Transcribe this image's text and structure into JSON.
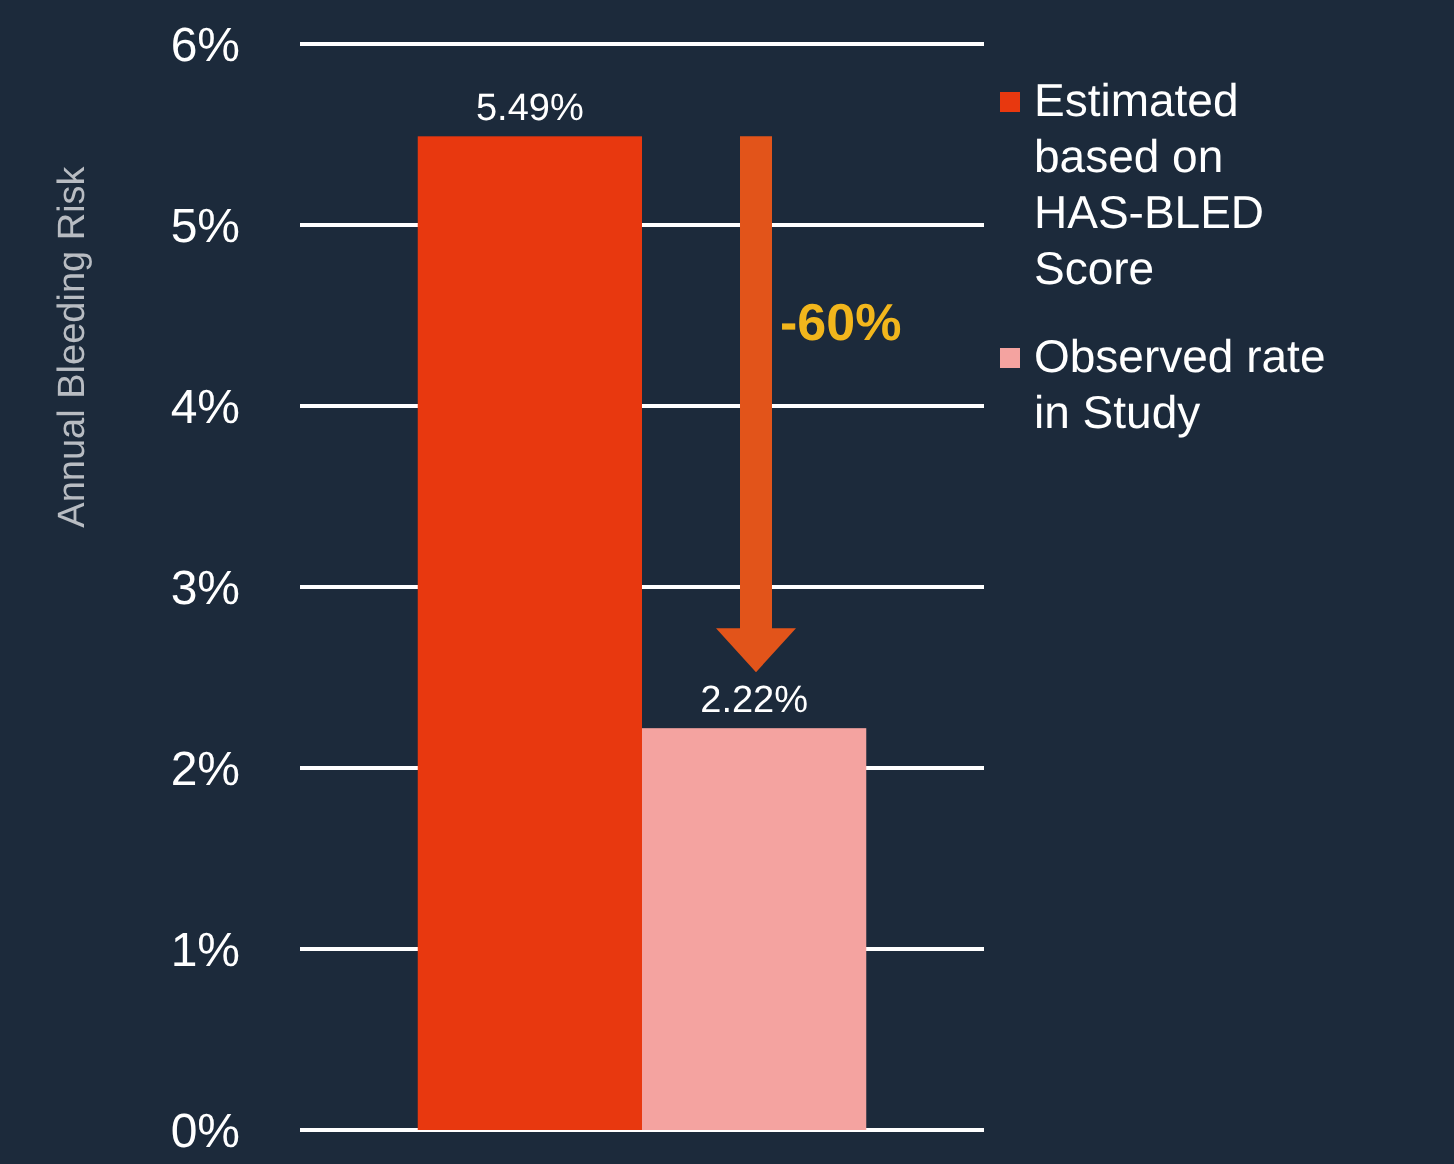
{
  "chart_data": {
    "type": "bar",
    "ylabel": "Annual Bleeding Risk",
    "categories": [
      null
    ],
    "series": [
      {
        "name": "Estimated based on HAS-BLED Score",
        "color": "#e8380f",
        "values": [
          5.49
        ]
      },
      {
        "name": "Observed rate in Study",
        "color": "#f4a3a0",
        "values": [
          2.22
        ]
      }
    ],
    "ylim": [
      0,
      6
    ],
    "yticks": [
      {
        "value": 0,
        "label": "0%"
      },
      {
        "value": 1,
        "label": "1%"
      },
      {
        "value": 2,
        "label": "2%"
      },
      {
        "value": 3,
        "label": "3%"
      },
      {
        "value": 4,
        "label": "4%"
      },
      {
        "value": 5,
        "label": "5%"
      },
      {
        "value": 6,
        "label": "6%"
      }
    ],
    "value_labels": [
      "5.49%",
      "2.22%"
    ],
    "annotations": [
      "-60%"
    ],
    "grid": "y",
    "legend": "right"
  }
}
